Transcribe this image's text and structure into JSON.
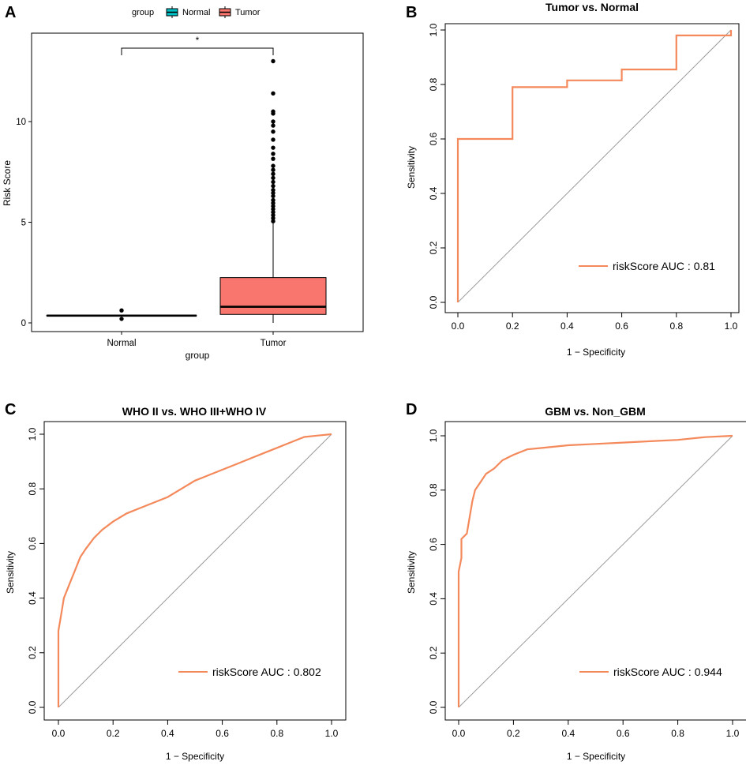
{
  "colors": {
    "roc": "#f4895b",
    "tumor_fill": "#f8766d",
    "normal_fill": "#00bfc4",
    "diagonal": "#9a9a9a",
    "frame": "#000000"
  },
  "chart_data": [
    {
      "id": "A",
      "letter": "A",
      "type": "box",
      "legend": {
        "title": "group",
        "items": [
          "Normal",
          "Tumor"
        ],
        "position": "top"
      },
      "xlabel": "group",
      "ylabel": "Risk Score",
      "categories": [
        "Normal",
        "Tumor"
      ],
      "yticks": [
        "0",
        "5",
        "10"
      ],
      "yticks_values": [
        0,
        5,
        10
      ],
      "ylim": [
        -0.4,
        14.3
      ],
      "boxes": [
        {
          "name": "Normal",
          "min": 0.36,
          "q1": 0.36,
          "median": 0.36,
          "q3": 0.36,
          "max": 0.36,
          "outliers": [
            0.62,
            0.2
          ]
        },
        {
          "name": "Tumor",
          "min": 0.0,
          "q1": 0.42,
          "median": 0.8,
          "q3": 2.25,
          "max": 5.0,
          "outliers": [
            5.05,
            5.2,
            5.35,
            5.5,
            5.65,
            5.8,
            5.95,
            6.1,
            6.3,
            6.45,
            6.6,
            6.8,
            7.0,
            7.2,
            7.4,
            7.6,
            7.8,
            8.15,
            8.4,
            8.7,
            9.1,
            9.5,
            9.8,
            10.0,
            10.4,
            10.5,
            11.4,
            13.0
          ]
        }
      ],
      "significance": "*"
    },
    {
      "id": "B",
      "letter": "B",
      "type": "line",
      "title": "Tumor vs. Normal",
      "xlabel": "1 − Specificity",
      "ylabel": "Sensitivity",
      "xticks": [
        "0.0",
        "0.2",
        "0.4",
        "0.6",
        "0.8",
        "1.0"
      ],
      "yticks": [
        "0.0",
        "0.2",
        "0.4",
        "0.6",
        "0.8",
        "1.0"
      ],
      "xlim": [
        0,
        1
      ],
      "ylim": [
        0,
        1
      ],
      "legend": "riskScore AUC : 0.81",
      "roc": [
        [
          0,
          0
        ],
        [
          0,
          0.6
        ],
        [
          0.2,
          0.6
        ],
        [
          0.2,
          0.79
        ],
        [
          0.4,
          0.79
        ],
        [
          0.4,
          0.815
        ],
        [
          0.6,
          0.815
        ],
        [
          0.6,
          0.855
        ],
        [
          0.8,
          0.855
        ],
        [
          0.8,
          0.98
        ],
        [
          1,
          0.98
        ],
        [
          1,
          1
        ]
      ]
    },
    {
      "id": "C",
      "letter": "C",
      "type": "line",
      "title": "WHO II vs. WHO III+WHO IV",
      "xlabel": "1 − Specificity",
      "ylabel": "Sensitivity",
      "xticks": [
        "0.0",
        "0.2",
        "0.4",
        "0.6",
        "0.8",
        "1.0"
      ],
      "yticks": [
        "0.0",
        "0.2",
        "0.4",
        "0.6",
        "0.8",
        "1.0"
      ],
      "xlim": [
        0,
        1
      ],
      "ylim": [
        0,
        1
      ],
      "legend": "riskScore AUC : 0.802",
      "roc": [
        [
          0,
          0
        ],
        [
          0,
          0.28
        ],
        [
          0.01,
          0.34
        ],
        [
          0.02,
          0.4
        ],
        [
          0.04,
          0.45
        ],
        [
          0.06,
          0.5
        ],
        [
          0.08,
          0.55
        ],
        [
          0.1,
          0.58
        ],
        [
          0.13,
          0.62
        ],
        [
          0.16,
          0.65
        ],
        [
          0.2,
          0.68
        ],
        [
          0.25,
          0.71
        ],
        [
          0.3,
          0.73
        ],
        [
          0.35,
          0.75
        ],
        [
          0.4,
          0.77
        ],
        [
          0.45,
          0.8
        ],
        [
          0.5,
          0.83
        ],
        [
          0.55,
          0.85
        ],
        [
          0.6,
          0.87
        ],
        [
          0.65,
          0.89
        ],
        [
          0.7,
          0.91
        ],
        [
          0.75,
          0.93
        ],
        [
          0.8,
          0.95
        ],
        [
          0.85,
          0.97
        ],
        [
          0.9,
          0.99
        ],
        [
          0.95,
          0.995
        ],
        [
          1,
          1
        ]
      ]
    },
    {
      "id": "D",
      "letter": "D",
      "type": "line",
      "title": "GBM vs. Non_GBM",
      "xlabel": "1 − Specificity",
      "ylabel": "Sensitivity",
      "xticks": [
        "0.0",
        "0.2",
        "0.4",
        "0.6",
        "0.8",
        "1.0"
      ],
      "yticks": [
        "0.0",
        "0.2",
        "0.4",
        "0.6",
        "0.8",
        "1.0"
      ],
      "xlim": [
        0,
        1
      ],
      "ylim": [
        0,
        1
      ],
      "legend": "riskScore AUC : 0.944",
      "roc": [
        [
          0,
          0
        ],
        [
          0,
          0.5
        ],
        [
          0.01,
          0.55
        ],
        [
          0.01,
          0.62
        ],
        [
          0.03,
          0.64
        ],
        [
          0.04,
          0.7
        ],
        [
          0.05,
          0.76
        ],
        [
          0.06,
          0.8
        ],
        [
          0.08,
          0.83
        ],
        [
          0.1,
          0.86
        ],
        [
          0.13,
          0.88
        ],
        [
          0.16,
          0.91
        ],
        [
          0.2,
          0.93
        ],
        [
          0.25,
          0.95
        ],
        [
          0.3,
          0.955
        ],
        [
          0.4,
          0.965
        ],
        [
          0.5,
          0.97
        ],
        [
          0.6,
          0.975
        ],
        [
          0.7,
          0.98
        ],
        [
          0.8,
          0.985
        ],
        [
          0.9,
          0.995
        ],
        [
          1,
          1
        ]
      ]
    }
  ]
}
